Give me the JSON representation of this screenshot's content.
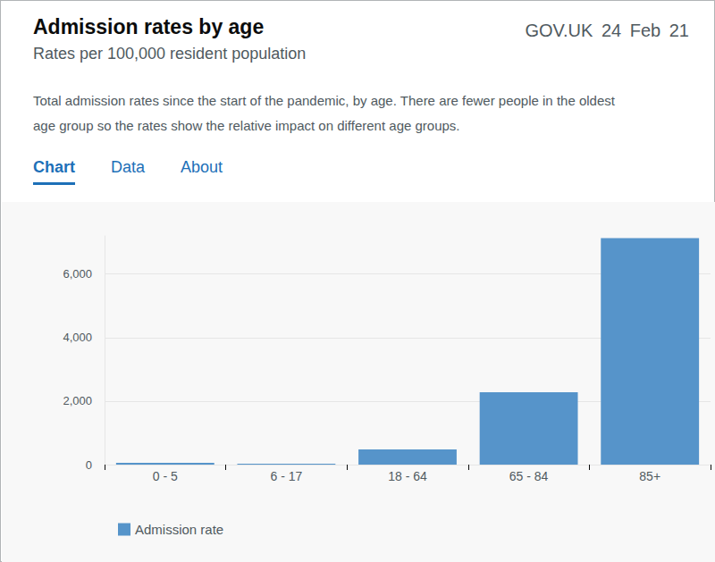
{
  "chart_data": {
    "type": "bar",
    "title": "Admission rates by age",
    "subtitle": "Rates per 100,000 resident population",
    "categories": [
      "0 - 5",
      "6 - 17",
      "18 - 64",
      "65 - 84",
      "85+"
    ],
    "series": [
      {
        "name": "Admission rate",
        "color": "#5694ca",
        "values": [
          55,
          25,
          480,
          2280,
          7130
        ]
      }
    ],
    "ylim": [
      0,
      7200
    ],
    "yticks": [
      0,
      {
        "value": 2000,
        "label": "2,000"
      },
      {
        "value": 4000,
        "label": "4,000"
      },
      {
        "value": 6000,
        "label": "6,000"
      }
    ],
    "grid": true,
    "legend": "bottom"
  },
  "page": {
    "source": "GOV.UK",
    "date": "24 Feb 21",
    "description": "Total admission rates since the start of the pandemic, by age. There are fewer people in the oldest age group so the rates show the relative impact on different age groups.",
    "tabs": [
      "Chart",
      "Data",
      "About"
    ]
  }
}
